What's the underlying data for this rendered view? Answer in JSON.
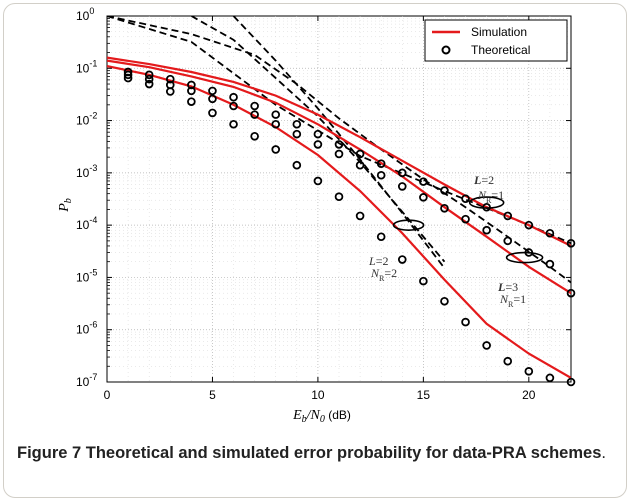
{
  "chart_data": {
    "type": "line",
    "xlabel_main": "E",
    "xlabel_sub1": "b",
    "xlabel_mid": "/N",
    "xlabel_sub2": "0",
    "xlabel_unit": " (dB)",
    "ylabel_main": "P",
    "ylabel_sub": "b",
    "xlim": [
      0,
      22
    ],
    "ylim_log10": [
      -7,
      0
    ],
    "y_scale": "log",
    "x_ticks": [
      "0",
      "5",
      "10",
      "15",
      "20"
    ],
    "y_ticks_exp": [
      "0",
      "-1",
      "-2",
      "-3",
      "-4",
      "-5",
      "-6",
      "-7"
    ],
    "grid": "dotted",
    "legend_position": "top-right",
    "legend": [
      {
        "label": "Simulation",
        "style": "red-solid"
      },
      {
        "label": "Theoretical",
        "style": "black-circle"
      }
    ],
    "x_theory": [
      1,
      2,
      3,
      4,
      5,
      6,
      7,
      8,
      9,
      10,
      11,
      12,
      13,
      14,
      15,
      16,
      17,
      18,
      19,
      20,
      21,
      22
    ],
    "simulation_series": [
      {
        "x": [
          0,
          2,
          4,
          6,
          8,
          10,
          12,
          14,
          16,
          18,
          20,
          22
        ],
        "y": [
          0.16,
          0.12,
          0.085,
          0.055,
          0.03,
          0.013,
          0.0048,
          0.0017,
          0.0006,
          0.00022,
          0.0001,
          4e-05
        ]
      },
      {
        "x": [
          0,
          2,
          4,
          6,
          8,
          10,
          12,
          14,
          16,
          18,
          20,
          22
        ],
        "y": [
          0.14,
          0.105,
          0.07,
          0.044,
          0.022,
          0.0085,
          0.0028,
          0.00085,
          0.00022,
          6e-05,
          1.6e-05,
          5e-06
        ]
      },
      {
        "x": [
          0,
          2,
          4,
          6,
          8,
          10,
          12,
          14,
          16,
          18,
          20,
          22
        ],
        "y": [
          0.11,
          0.075,
          0.045,
          0.02,
          0.0075,
          0.0022,
          0.00045,
          7e-05,
          9e-06,
          1.3e-06,
          3.5e-07,
          1.2e-07
        ]
      }
    ],
    "theory_series": [
      {
        "y": [
          0.085,
          0.075,
          0.062,
          0.048,
          0.037,
          0.028,
          0.019,
          0.013,
          0.0085,
          0.0055,
          0.0035,
          0.0023,
          0.0015,
          0.001,
          0.00068,
          0.00046,
          0.00032,
          0.00022,
          0.00015,
          0.0001,
          7e-05,
          4.5e-05
        ]
      },
      {
        "y": [
          0.075,
          0.062,
          0.048,
          0.037,
          0.026,
          0.019,
          0.013,
          0.0085,
          0.0055,
          0.0035,
          0.0023,
          0.0014,
          0.0009,
          0.00055,
          0.00034,
          0.00021,
          0.00013,
          8e-05,
          5e-05,
          3e-05,
          1.8e-05,
          5e-06
        ]
      },
      {
        "y": [
          0.065,
          0.05,
          0.036,
          0.023,
          0.014,
          0.0085,
          0.005,
          0.0028,
          0.0014,
          0.0007,
          0.00035,
          0.00015,
          6e-05,
          2.2e-05,
          8.5e-06,
          3.5e-06,
          1.4e-06,
          5e-07,
          2.5e-07,
          1.6e-07,
          1.2e-07,
          1e-07
        ]
      }
    ],
    "bound_series": [
      {
        "x": [
          0,
          4,
          8,
          12,
          16,
          20,
          22
        ],
        "y": [
          1.0,
          0.32,
          0.02,
          0.0021,
          0.00045,
          0.0001,
          4.5e-05
        ]
      },
      {
        "x": [
          0,
          4,
          7,
          9,
          11,
          13,
          15,
          17,
          19,
          21,
          22
        ],
        "y": [
          1.0,
          0.45,
          0.18,
          0.05,
          0.011,
          0.0028,
          0.00075,
          0.00022,
          6e-05,
          1.6e-05,
          8e-06
        ]
      },
      {
        "x": [
          4,
          6,
          8,
          10,
          12,
          14,
          16
        ],
        "y": [
          1.0,
          0.35,
          0.065,
          0.012,
          0.0016,
          0.00018,
          2e-05
        ]
      },
      {
        "x": [
          6,
          8,
          10,
          12,
          14,
          16
        ],
        "y": [
          1.0,
          0.14,
          0.017,
          0.0018,
          0.00017,
          1.5e-05
        ]
      }
    ],
    "annotations": [
      {
        "l": "2",
        "nr": "1"
      },
      {
        "l": "2",
        "nr": "2"
      },
      {
        "l": "3",
        "nr": "1"
      }
    ],
    "annotation_symbols": {
      "l": "L",
      "n": "N",
      "r": "R",
      "eq": "="
    }
  },
  "caption": {
    "label": "Figure 7",
    "text_bold": " Theoretical and simulated error probability for data-PRA schemes",
    "end": "."
  },
  "colors": {
    "simulation": "#e41a1c",
    "theory": "#000000",
    "bound": "#000000",
    "grid": "#b0b0b0"
  }
}
